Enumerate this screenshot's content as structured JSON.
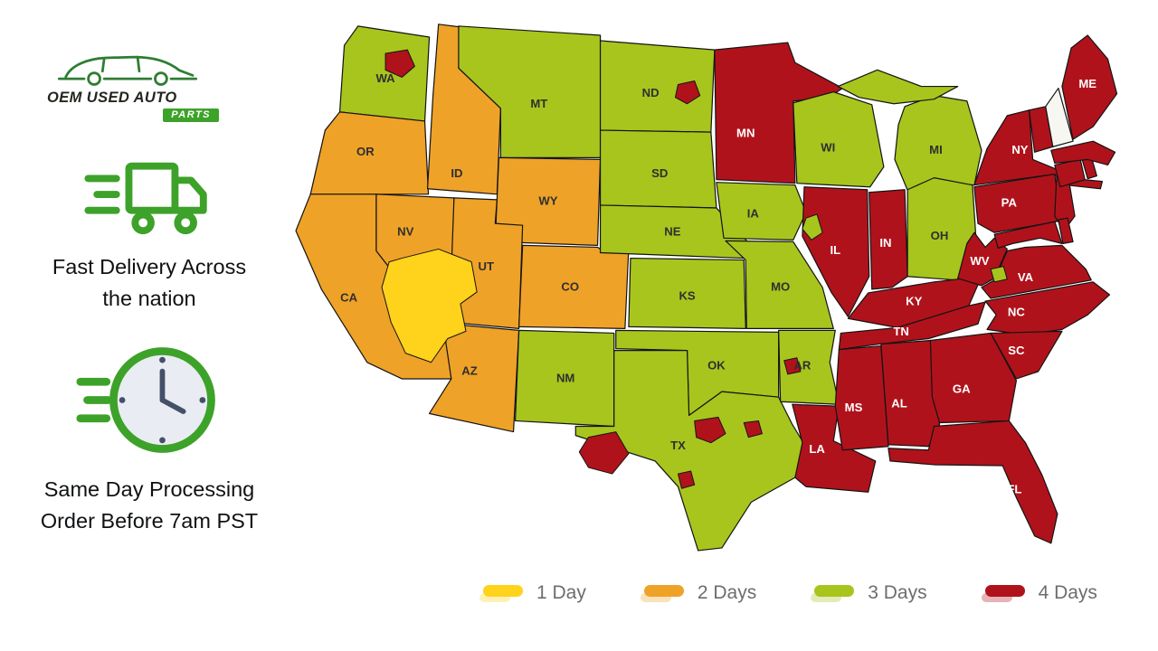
{
  "colors": {
    "day1": "#FFD21C",
    "day2": "#EFA228",
    "day3": "#A8C51D",
    "day4": "#B0121B",
    "none": "#F7F7F2",
    "border": "#141414",
    "accent_green": "#3DA229",
    "label_dark": "#2f2f2f",
    "label_light": "#ffffff",
    "legend_text": "#6d6d6d"
  },
  "branding": {
    "logo_line1": "OEM USED AUTO",
    "logo_line2": "PARTS"
  },
  "features": [
    {
      "icon": "delivery-truck-icon",
      "line1": "Fast Delivery Across",
      "line2": "the nation"
    },
    {
      "icon": "processing-clock-icon",
      "line1": "Same Day Processing",
      "line2": "Order Before 7am PST"
    }
  ],
  "legend": [
    {
      "key": "day1",
      "label": "1 Day"
    },
    {
      "key": "day2",
      "label": "2 Days"
    },
    {
      "key": "day3",
      "label": "3 Days"
    },
    {
      "key": "day4",
      "label": "4 Days"
    }
  ],
  "map": {
    "description": "US map of delivery time zones by state",
    "states": [
      {
        "code": "WA",
        "days": 3
      },
      {
        "code": "OR",
        "days": 2
      },
      {
        "code": "CA",
        "days": 2
      },
      {
        "code": "NV",
        "days": 2
      },
      {
        "code": "ID",
        "days": 2
      },
      {
        "code": "MT",
        "days": 3
      },
      {
        "code": "WY",
        "days": 2
      },
      {
        "code": "UT",
        "days": 2
      },
      {
        "code": "CO",
        "days": 2
      },
      {
        "code": "AZ",
        "days": 2
      },
      {
        "code": "NM",
        "days": 3
      },
      {
        "code": "ND",
        "days": 3
      },
      {
        "code": "SD",
        "days": 3
      },
      {
        "code": "NE",
        "days": 3
      },
      {
        "code": "KS",
        "days": 3
      },
      {
        "code": "OK",
        "days": 3
      },
      {
        "code": "TX",
        "days": 3
      },
      {
        "code": "MN",
        "days": 4
      },
      {
        "code": "IA",
        "days": 3
      },
      {
        "code": "MO",
        "days": 3
      },
      {
        "code": "AR",
        "days": 3
      },
      {
        "code": "LA",
        "days": 4
      },
      {
        "code": "WI",
        "days": 3
      },
      {
        "code": "IL",
        "days": 4
      },
      {
        "code": "MI",
        "days": 3
      },
      {
        "code": "IN",
        "days": 4
      },
      {
        "code": "OH",
        "days": 3
      },
      {
        "code": "KY",
        "days": 4
      },
      {
        "code": "TN",
        "days": 4
      },
      {
        "code": "MS",
        "days": 4
      },
      {
        "code": "AL",
        "days": 4
      },
      {
        "code": "GA",
        "days": 4
      },
      {
        "code": "FL",
        "days": 4
      },
      {
        "code": "WV",
        "days": 4
      },
      {
        "code": "VA",
        "days": 4
      },
      {
        "code": "NC",
        "days": 4
      },
      {
        "code": "SC",
        "days": 4
      },
      {
        "code": "PA",
        "days": 4
      },
      {
        "code": "NY",
        "days": 4
      },
      {
        "code": "NJ",
        "days": 4
      },
      {
        "code": "MD",
        "days": 4
      },
      {
        "code": "DE",
        "days": 4
      },
      {
        "code": "CT",
        "days": 4
      },
      {
        "code": "RI",
        "days": 4
      },
      {
        "code": "MA",
        "days": 4
      },
      {
        "code": "VT",
        "days": 4
      },
      {
        "code": "NH",
        "days": 0
      },
      {
        "code": "ME",
        "days": 4
      }
    ],
    "partial_zones": [
      {
        "id": "southwest-1day",
        "days": 1,
        "states": [
          "NV",
          "CA",
          "AZ",
          "UT"
        ]
      },
      {
        "id": "wa-metro",
        "days": 4,
        "states": [
          "WA"
        ]
      },
      {
        "id": "nd-metro",
        "days": 4,
        "states": [
          "ND"
        ]
      },
      {
        "id": "tx-west",
        "days": 4,
        "states": [
          "TX"
        ]
      },
      {
        "id": "tx-north",
        "days": 4,
        "states": [
          "TX"
        ]
      },
      {
        "id": "tx-east",
        "days": 4,
        "states": [
          "TX"
        ]
      },
      {
        "id": "tx-south",
        "days": 4,
        "states": [
          "TX"
        ]
      },
      {
        "id": "ar-central",
        "days": 4,
        "states": [
          "AR"
        ]
      },
      {
        "id": "il-west",
        "days": 3,
        "states": [
          "IL"
        ]
      },
      {
        "id": "va-west",
        "days": 3,
        "states": [
          "VA"
        ]
      }
    ]
  }
}
